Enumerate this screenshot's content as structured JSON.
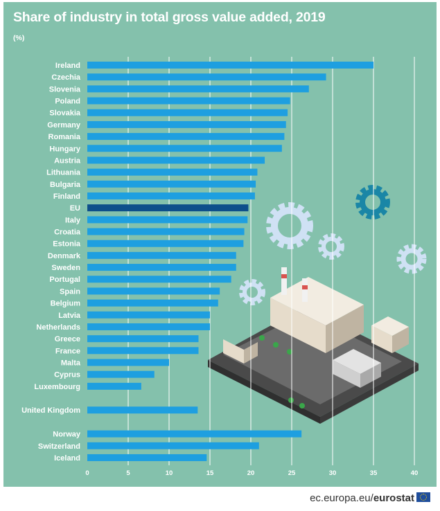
{
  "title": "Share of industry in total gross value added, 2019",
  "unit": "(%)",
  "footer": {
    "domain": "ec.europa.eu/",
    "brand": "eurostat"
  },
  "colors": {
    "background": "#84c1ac",
    "bar": "#1e9fe0",
    "highlight_bar": "#0d4f8b",
    "gridline": "#ffffff",
    "text": "#ffffff"
  },
  "illustration": "factory-with-gears",
  "chart_data": {
    "type": "bar",
    "orientation": "horizontal",
    "title": "Share of industry in total gross value added, 2019",
    "unit": "(%)",
    "xlim": [
      0,
      40
    ],
    "ticks": [
      0,
      5,
      10,
      15,
      20,
      25,
      30,
      35,
      40
    ],
    "grid": true,
    "highlight": "EU",
    "categories": [
      "Ireland",
      "Czechia",
      "Slovenia",
      "Poland",
      "Slovakia",
      "Germany",
      "Romania",
      "Hungary",
      "Austria",
      "Lithuania",
      "Bulgaria",
      "Finland",
      "EU",
      "Italy",
      "Croatia",
      "Estonia",
      "Denmark",
      "Sweden",
      "Portugal",
      "Spain",
      "Belgium",
      "Latvia",
      "Netherlands",
      "Greece",
      "France",
      "Malta",
      "Cyprus",
      "Luxembourg",
      "United Kingdom",
      "Norway",
      "Switzerland",
      "Iceland"
    ],
    "values": [
      35.0,
      29.2,
      27.1,
      24.8,
      24.5,
      24.3,
      24.1,
      23.8,
      21.7,
      20.8,
      20.6,
      20.5,
      19.7,
      19.6,
      19.2,
      19.1,
      18.2,
      18.2,
      17.6,
      16.2,
      16.0,
      15.0,
      15.0,
      13.6,
      13.6,
      10.0,
      8.2,
      6.6,
      13.5,
      26.2,
      21.0,
      14.6
    ]
  }
}
